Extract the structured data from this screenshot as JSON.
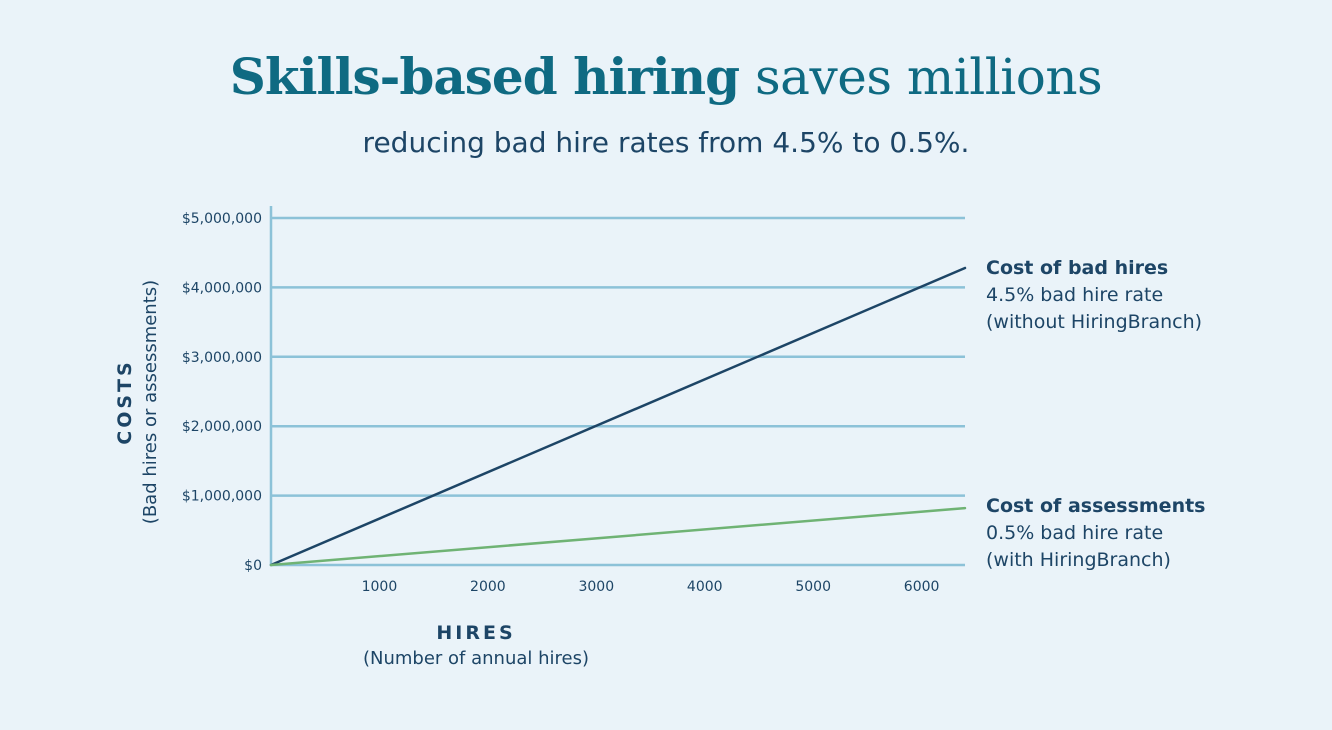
{
  "header": {
    "title_bold": "Skills-based hiring",
    "title_rest": "saves millions",
    "subtitle": "reducing bad hire rates from 4.5% to 0.5%."
  },
  "colors": {
    "background": "#eaf3f9",
    "title": "#0f6a82",
    "text": "#1d4566",
    "grid": "#8cc2d8",
    "bad_hires_line": "#1d4566",
    "assessments_line": "#6fb374"
  },
  "chart_data": {
    "type": "line",
    "title": "Skills-based hiring saves millions",
    "subtitle": "reducing bad hire rates from 4.5% to 0.5%.",
    "ylabel": "COSTS",
    "ylabel_sub": "(Bad hires or assessments)",
    "xlabel": "HIRES",
    "xlabel_sub": "(Number of annual hires)",
    "xlim": [
      0,
      6400
    ],
    "ylim": [
      0,
      5000000
    ],
    "x_ticks": [
      1000,
      2000,
      3000,
      4000,
      5000,
      6000
    ],
    "x_tick_labels": [
      "1000",
      "2000",
      "3000",
      "4000",
      "5000",
      "6000"
    ],
    "y_ticks": [
      0,
      1000000,
      2000000,
      3000000,
      4000000,
      5000000
    ],
    "y_tick_labels": [
      "$0",
      "$1,000,000",
      "$2,000,000",
      "$3,000,000",
      "$4,000,000",
      "$5,000,000"
    ],
    "grid": "horizontal",
    "series": [
      {
        "name": "Cost of bad hires",
        "desc1": "4.5% bad hire rate",
        "desc2": "(without HiringBranch)",
        "x": [
          0,
          6400
        ],
        "y": [
          0,
          4280000
        ]
      },
      {
        "name": "Cost of assessments",
        "desc1": "0.5% bad hire rate",
        "desc2": "(with HiringBranch)",
        "x": [
          0,
          6400
        ],
        "y": [
          0,
          820000
        ]
      }
    ]
  }
}
